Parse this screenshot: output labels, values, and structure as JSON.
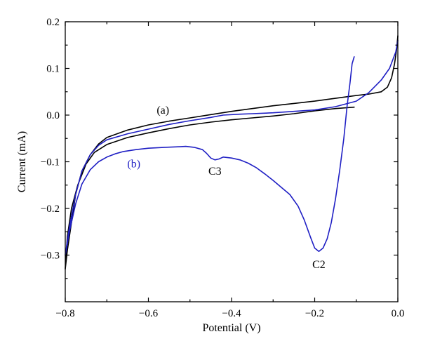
{
  "chart_data": {
    "type": "line",
    "xlabel": "Potential (V)",
    "ylabel": "Current (mA)",
    "xlim": [
      -0.8,
      0.0
    ],
    "ylim": [
      -0.4,
      0.2
    ],
    "x_major_ticks": [
      -0.8,
      -0.6,
      -0.4,
      -0.2,
      0.0
    ],
    "x_tick_labels": [
      "−0.8",
      "−0.6",
      "−0.4",
      "−0.2",
      "0.0"
    ],
    "y_major_ticks": [
      0.2,
      0.1,
      0.0,
      -0.1,
      -0.2,
      -0.3
    ],
    "y_tick_labels": [
      "0.2",
      "0.1",
      "0.0",
      "−0.1",
      "−0.2",
      "−0.3"
    ],
    "grid": false,
    "series": [
      {
        "name": "(a)",
        "color": "#000000",
        "points": [
          [
            -0.105,
            0.017
          ],
          [
            -0.15,
            0.014
          ],
          [
            -0.2,
            0.009
          ],
          [
            -0.25,
            0.003
          ],
          [
            -0.3,
            -0.002
          ],
          [
            -0.35,
            -0.006
          ],
          [
            -0.4,
            -0.01
          ],
          [
            -0.45,
            -0.015
          ],
          [
            -0.5,
            -0.021
          ],
          [
            -0.55,
            -0.029
          ],
          [
            -0.6,
            -0.038
          ],
          [
            -0.65,
            -0.048
          ],
          [
            -0.7,
            -0.063
          ],
          [
            -0.73,
            -0.08
          ],
          [
            -0.75,
            -0.105
          ],
          [
            -0.77,
            -0.15
          ],
          [
            -0.785,
            -0.2
          ],
          [
            -0.795,
            -0.26
          ],
          [
            -0.8,
            -0.33
          ],
          [
            -0.795,
            -0.29
          ],
          [
            -0.785,
            -0.23
          ],
          [
            -0.775,
            -0.17
          ],
          [
            -0.76,
            -0.12
          ],
          [
            -0.74,
            -0.085
          ],
          [
            -0.72,
            -0.062
          ],
          [
            -0.7,
            -0.048
          ],
          [
            -0.65,
            -0.032
          ],
          [
            -0.6,
            -0.021
          ],
          [
            -0.55,
            -0.013
          ],
          [
            -0.5,
            -0.006
          ],
          [
            -0.45,
            0.001
          ],
          [
            -0.4,
            0.008
          ],
          [
            -0.35,
            0.014
          ],
          [
            -0.3,
            0.02
          ],
          [
            -0.25,
            0.025
          ],
          [
            -0.2,
            0.03
          ],
          [
            -0.15,
            0.036
          ],
          [
            -0.1,
            0.042
          ],
          [
            -0.07,
            0.045
          ],
          [
            -0.04,
            0.05
          ],
          [
            -0.025,
            0.06
          ],
          [
            -0.015,
            0.08
          ],
          [
            -0.008,
            0.11
          ],
          [
            -0.003,
            0.14
          ],
          [
            0.0,
            0.17
          ]
        ]
      },
      {
        "name": "(b)",
        "color": "#1f1fc4",
        "points": [
          [
            -0.105,
            0.125
          ],
          [
            -0.11,
            0.11
          ],
          [
            -0.115,
            0.07
          ],
          [
            -0.122,
            0.02
          ],
          [
            -0.13,
            -0.05
          ],
          [
            -0.14,
            -0.12
          ],
          [
            -0.15,
            -0.18
          ],
          [
            -0.16,
            -0.23
          ],
          [
            -0.17,
            -0.265
          ],
          [
            -0.18,
            -0.285
          ],
          [
            -0.19,
            -0.292
          ],
          [
            -0.2,
            -0.285
          ],
          [
            -0.21,
            -0.262
          ],
          [
            -0.225,
            -0.225
          ],
          [
            -0.24,
            -0.195
          ],
          [
            -0.26,
            -0.17
          ],
          [
            -0.28,
            -0.155
          ],
          [
            -0.3,
            -0.14
          ],
          [
            -0.32,
            -0.126
          ],
          [
            -0.34,
            -0.113
          ],
          [
            -0.36,
            -0.103
          ],
          [
            -0.38,
            -0.096
          ],
          [
            -0.4,
            -0.092
          ],
          [
            -0.42,
            -0.09
          ],
          [
            -0.43,
            -0.094
          ],
          [
            -0.44,
            -0.096
          ],
          [
            -0.45,
            -0.092
          ],
          [
            -0.46,
            -0.082
          ],
          [
            -0.47,
            -0.074
          ],
          [
            -0.49,
            -0.069
          ],
          [
            -0.51,
            -0.067
          ],
          [
            -0.53,
            -0.068
          ],
          [
            -0.56,
            -0.069
          ],
          [
            -0.6,
            -0.071
          ],
          [
            -0.63,
            -0.074
          ],
          [
            -0.66,
            -0.078
          ],
          [
            -0.68,
            -0.083
          ],
          [
            -0.7,
            -0.09
          ],
          [
            -0.72,
            -0.1
          ],
          [
            -0.74,
            -0.117
          ],
          [
            -0.76,
            -0.148
          ],
          [
            -0.775,
            -0.19
          ],
          [
            -0.79,
            -0.25
          ],
          [
            -0.8,
            -0.3
          ],
          [
            -0.79,
            -0.24
          ],
          [
            -0.775,
            -0.17
          ],
          [
            -0.76,
            -0.12
          ],
          [
            -0.74,
            -0.085
          ],
          [
            -0.72,
            -0.065
          ],
          [
            -0.7,
            -0.053
          ],
          [
            -0.65,
            -0.04
          ],
          [
            -0.6,
            -0.03
          ],
          [
            -0.55,
            -0.02
          ],
          [
            -0.5,
            -0.012
          ],
          [
            -0.45,
            -0.005
          ],
          [
            -0.42,
            0.0
          ],
          [
            -0.38,
            0.002
          ],
          [
            -0.35,
            0.003
          ],
          [
            -0.3,
            0.005
          ],
          [
            -0.25,
            0.008
          ],
          [
            -0.2,
            0.011
          ],
          [
            -0.15,
            0.018
          ],
          [
            -0.1,
            0.03
          ],
          [
            -0.07,
            0.048
          ],
          [
            -0.04,
            0.075
          ],
          [
            -0.02,
            0.1
          ],
          [
            -0.005,
            0.135
          ],
          [
            0.0,
            0.16
          ]
        ]
      }
    ],
    "annotations": [
      {
        "text": "(a)",
        "x": -0.565,
        "y": 0.003,
        "color": "#000000"
      },
      {
        "text": "(b)",
        "x": -0.635,
        "y": -0.112,
        "color": "#1f1fc4"
      },
      {
        "text": "C3",
        "x": -0.44,
        "y": -0.128,
        "color": "#000000"
      },
      {
        "text": "C2",
        "x": -0.19,
        "y": -0.328,
        "color": "#000000"
      }
    ]
  }
}
